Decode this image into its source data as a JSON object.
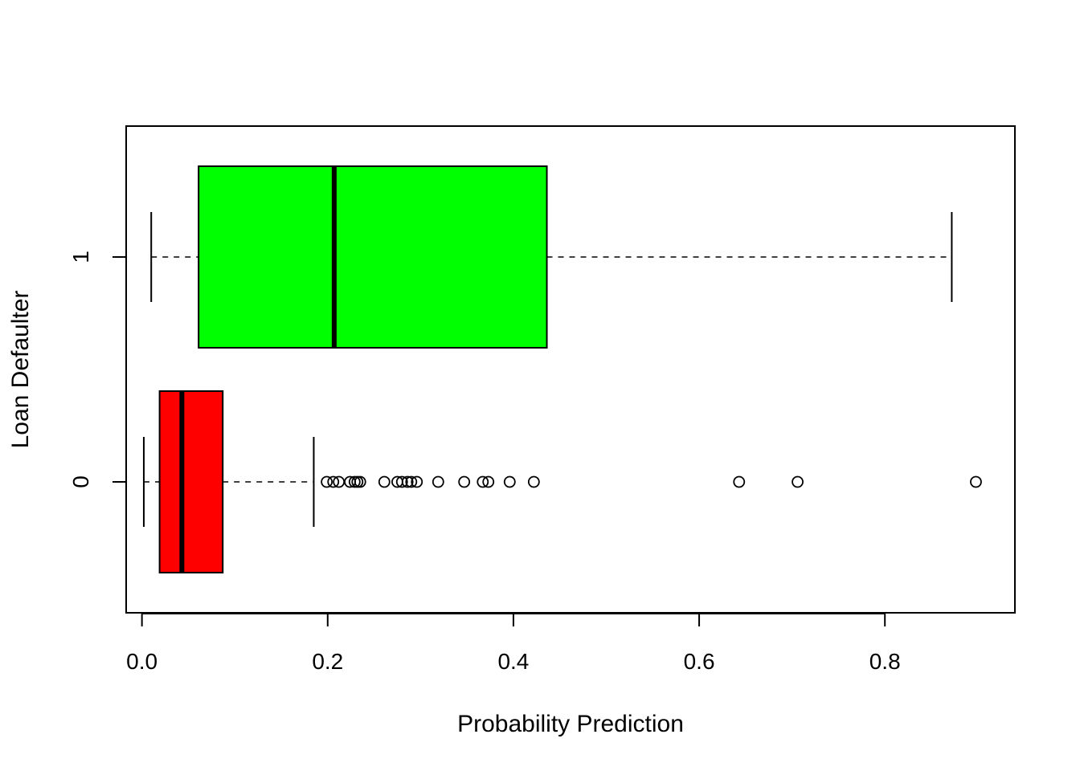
{
  "chart_data": {
    "type": "boxplot",
    "orientation": "horizontal",
    "title": "",
    "xlabel": "Probability Prediction",
    "ylabel": "Loan Defaulter",
    "xlim": [
      -0.017,
      0.94
    ],
    "x_ticks": [
      {
        "value": 0.0,
        "label": "0.0"
      },
      {
        "value": 0.2,
        "label": "0.2"
      },
      {
        "value": 0.4,
        "label": "0.4"
      },
      {
        "value": 0.6,
        "label": "0.6"
      },
      {
        "value": 0.8,
        "label": "0.8"
      }
    ],
    "groups": [
      {
        "label": "0",
        "color": "#ff0000",
        "whisker_low": 0.002,
        "q1": 0.019,
        "median": 0.043,
        "q3": 0.087,
        "whisker_high": 0.185,
        "outliers": [
          0.199,
          0.206,
          0.212,
          0.224,
          0.229,
          0.232,
          0.235,
          0.261,
          0.275,
          0.28,
          0.286,
          0.29,
          0.296,
          0.319,
          0.347,
          0.367,
          0.373,
          0.396,
          0.422,
          0.643,
          0.706,
          0.898
        ]
      },
      {
        "label": "1",
        "color": "#00ff00",
        "whisker_low": 0.01,
        "q1": 0.061,
        "median": 0.207,
        "q3": 0.436,
        "whisker_high": 0.872,
        "outliers": []
      }
    ]
  }
}
